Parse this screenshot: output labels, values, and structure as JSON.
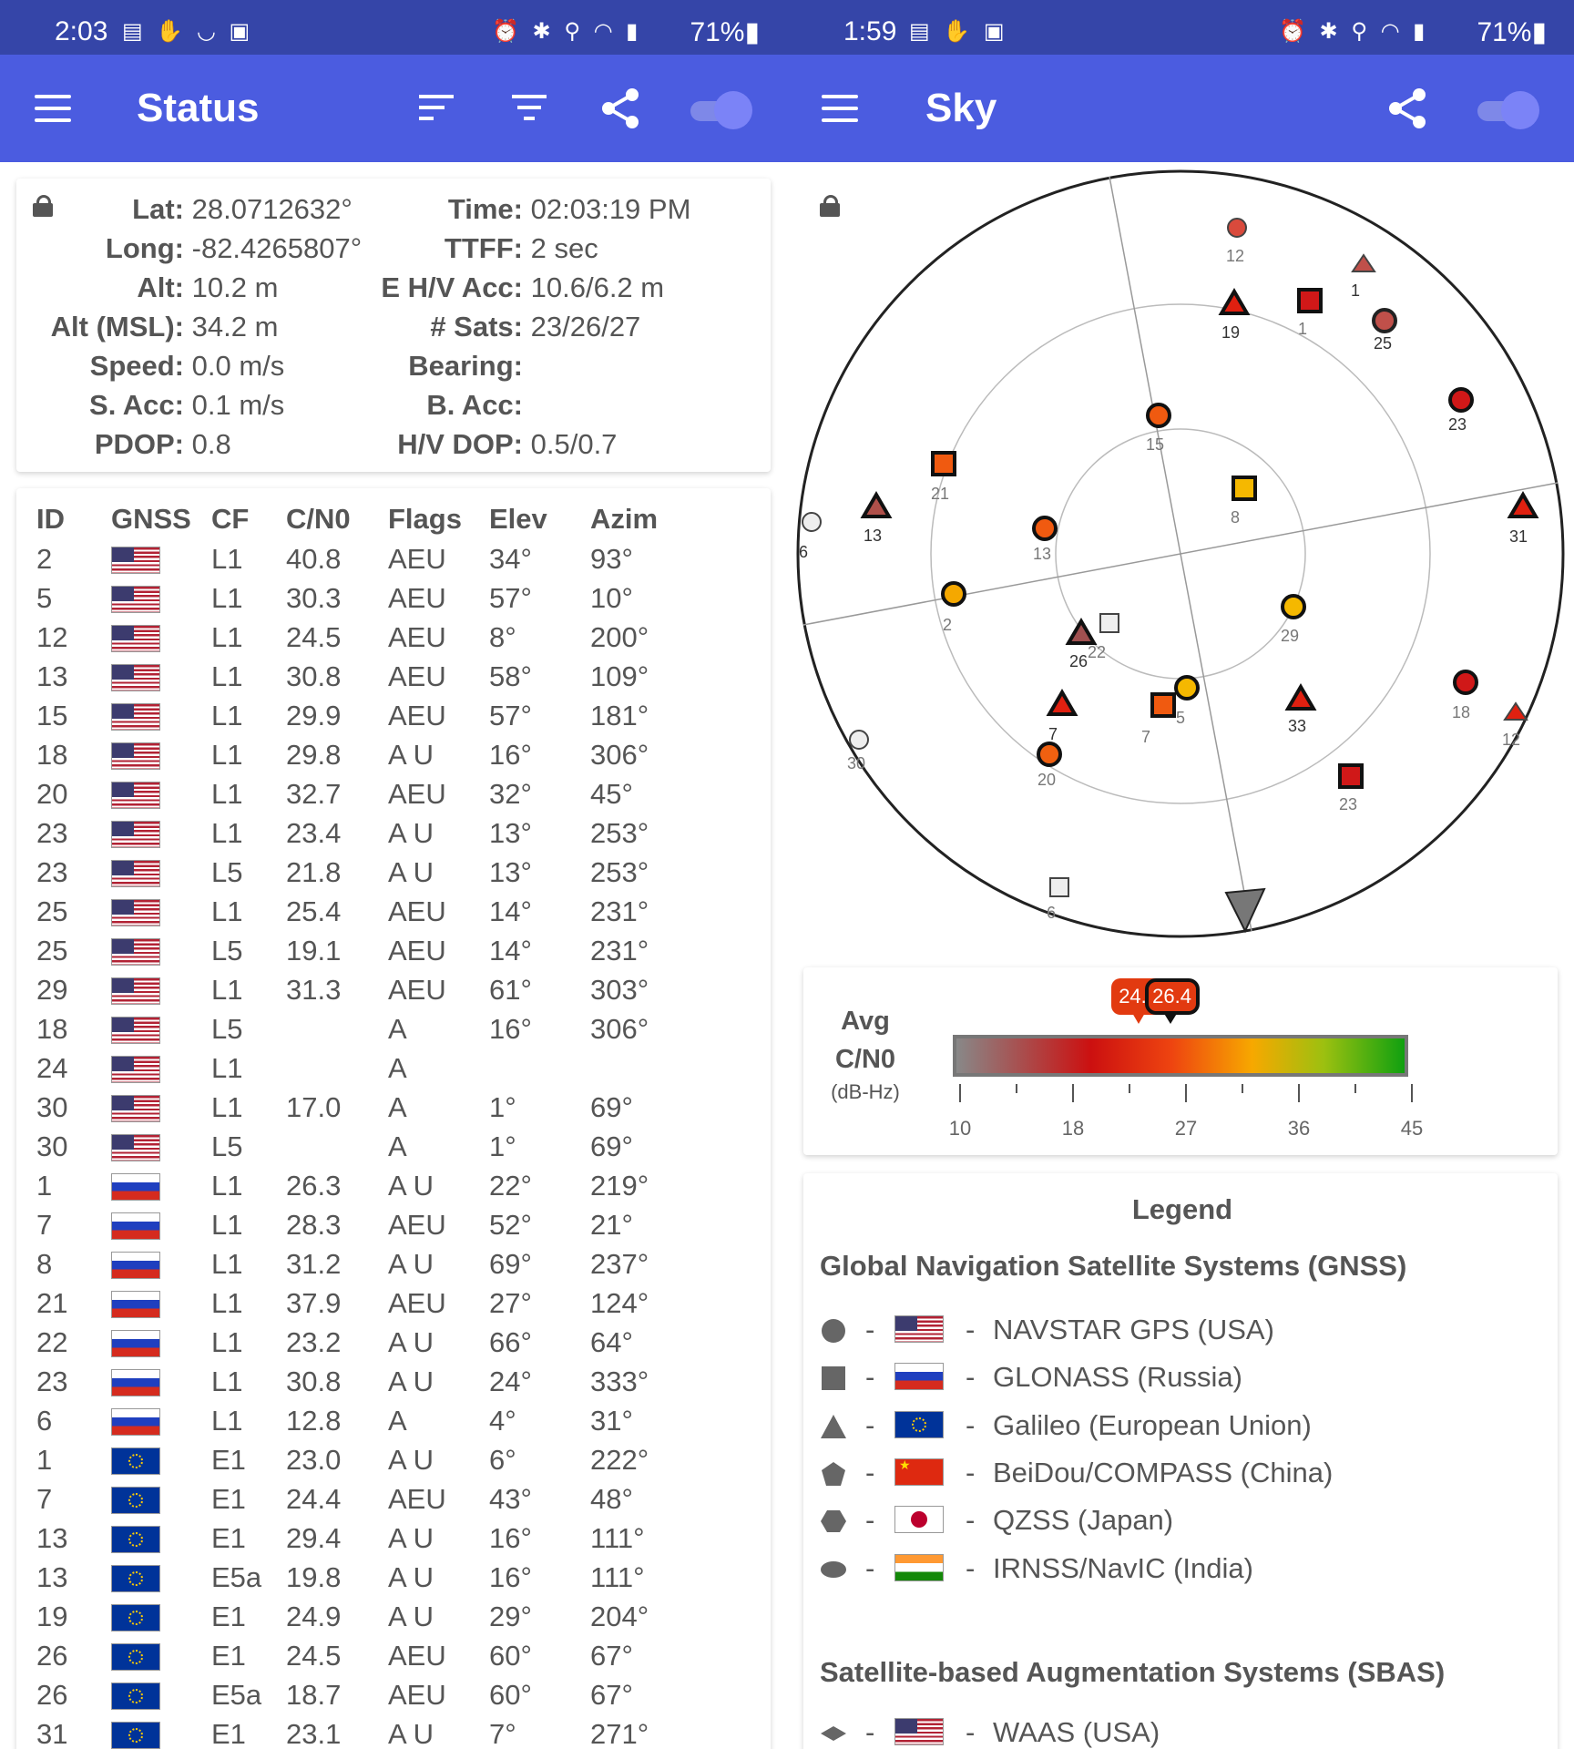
{
  "status_screen": {
    "statusbar": {
      "time": "2:03",
      "battery": "71%"
    },
    "toolbar": {
      "title": "Status"
    },
    "fix": {
      "lat_label": "Lat:",
      "lat": "28.0712632°",
      "long_label": "Long:",
      "long": "-82.4265807°",
      "alt_label": "Alt:",
      "alt": "10.2 m",
      "alt_msl_label": "Alt (MSL):",
      "alt_msl": "34.2 m",
      "speed_label": "Speed:",
      "speed": "0.0 m/s",
      "s_acc_label": "S. Acc:",
      "s_acc": "0.1 m/s",
      "pdop_label": "PDOP:",
      "pdop": "0.8",
      "time_label": "Time:",
      "time": "02:03:19 PM",
      "ttff_label": "TTFF:",
      "ttff": "2 sec",
      "ehv_acc_label": "E H/V Acc:",
      "ehv_acc": "10.6/6.2 m",
      "sats_label": "# Sats:",
      "sats": "23/26/27",
      "bearing_label": "Bearing:",
      "bearing": "",
      "b_acc_label": "B. Acc:",
      "b_acc": "",
      "hv_dop_label": "H/V DOP:",
      "hv_dop": "0.5/0.7"
    },
    "table": {
      "headers": [
        "ID",
        "GNSS",
        "CF",
        "C/N0",
        "Flags",
        "Elev",
        "Azim"
      ],
      "rows": [
        {
          "id": "2",
          "gnss": "us",
          "cf": "L1",
          "cn0": "40.8",
          "flags": "AEU",
          "elev": "34°",
          "azim": "93°"
        },
        {
          "id": "5",
          "gnss": "us",
          "cf": "L1",
          "cn0": "30.3",
          "flags": "AEU",
          "elev": "57°",
          "azim": "10°"
        },
        {
          "id": "12",
          "gnss": "us",
          "cf": "L1",
          "cn0": "24.5",
          "flags": "AEU",
          "elev": "8°",
          "azim": "200°"
        },
        {
          "id": "13",
          "gnss": "us",
          "cf": "L1",
          "cn0": "30.8",
          "flags": "AEU",
          "elev": "58°",
          "azim": "109°"
        },
        {
          "id": "15",
          "gnss": "us",
          "cf": "L1",
          "cn0": "29.9",
          "flags": "AEU",
          "elev": "57°",
          "azim": "181°"
        },
        {
          "id": "18",
          "gnss": "us",
          "cf": "L1",
          "cn0": "29.8",
          "flags": "A U",
          "elev": "16°",
          "azim": "306°"
        },
        {
          "id": "20",
          "gnss": "us",
          "cf": "L1",
          "cn0": "32.7",
          "flags": "AEU",
          "elev": "32°",
          "azim": "45°"
        },
        {
          "id": "23",
          "gnss": "us",
          "cf": "L1",
          "cn0": "23.4",
          "flags": "A U",
          "elev": "13°",
          "azim": "253°"
        },
        {
          "id": "23",
          "gnss": "us",
          "cf": "L5",
          "cn0": "21.8",
          "flags": "A U",
          "elev": "13°",
          "azim": "253°"
        },
        {
          "id": "25",
          "gnss": "us",
          "cf": "L1",
          "cn0": "25.4",
          "flags": "AEU",
          "elev": "14°",
          "azim": "231°"
        },
        {
          "id": "25",
          "gnss": "us",
          "cf": "L5",
          "cn0": "19.1",
          "flags": "AEU",
          "elev": "14°",
          "azim": "231°"
        },
        {
          "id": "29",
          "gnss": "us",
          "cf": "L1",
          "cn0": "31.3",
          "flags": "AEU",
          "elev": "61°",
          "azim": "303°"
        },
        {
          "id": "18",
          "gnss": "us",
          "cf": "L5",
          "cn0": "",
          "flags": "A",
          "elev": "16°",
          "azim": "306°"
        },
        {
          "id": "24",
          "gnss": "us",
          "cf": "L1",
          "cn0": "",
          "flags": "A",
          "elev": "",
          "azim": ""
        },
        {
          "id": "30",
          "gnss": "us",
          "cf": "L1",
          "cn0": "17.0",
          "flags": "A",
          "elev": "1°",
          "azim": "69°"
        },
        {
          "id": "30",
          "gnss": "us",
          "cf": "L5",
          "cn0": "",
          "flags": "A",
          "elev": "1°",
          "azim": "69°"
        },
        {
          "id": "1",
          "gnss": "ru",
          "cf": "L1",
          "cn0": "26.3",
          "flags": "A U",
          "elev": "22°",
          "azim": "219°"
        },
        {
          "id": "7",
          "gnss": "ru",
          "cf": "L1",
          "cn0": "28.3",
          "flags": "AEU",
          "elev": "52°",
          "azim": "21°"
        },
        {
          "id": "8",
          "gnss": "ru",
          "cf": "L1",
          "cn0": "31.2",
          "flags": "A U",
          "elev": "69°",
          "azim": "237°"
        },
        {
          "id": "21",
          "gnss": "ru",
          "cf": "L1",
          "cn0": "37.9",
          "flags": "AEU",
          "elev": "27°",
          "azim": "124°"
        },
        {
          "id": "22",
          "gnss": "ru",
          "cf": "L1",
          "cn0": "23.2",
          "flags": "A U",
          "elev": "66°",
          "azim": "64°"
        },
        {
          "id": "23",
          "gnss": "ru",
          "cf": "L1",
          "cn0": "30.8",
          "flags": "A U",
          "elev": "24°",
          "azim": "333°"
        },
        {
          "id": "6",
          "gnss": "ru",
          "cf": "L1",
          "cn0": "12.8",
          "flags": "A",
          "elev": "4°",
          "azim": "31°"
        },
        {
          "id": "1",
          "gnss": "eu",
          "cf": "E1",
          "cn0": "23.0",
          "flags": "A U",
          "elev": "6°",
          "azim": "222°"
        },
        {
          "id": "7",
          "gnss": "eu",
          "cf": "E1",
          "cn0": "24.4",
          "flags": "AEU",
          "elev": "43°",
          "azim": "48°"
        },
        {
          "id": "13",
          "gnss": "eu",
          "cf": "E1",
          "cn0": "29.4",
          "flags": "A U",
          "elev": "16°",
          "azim": "111°"
        },
        {
          "id": "13",
          "gnss": "eu",
          "cf": "E5a",
          "cn0": "19.8",
          "flags": "A U",
          "elev": "16°",
          "azim": "111°"
        },
        {
          "id": "19",
          "gnss": "eu",
          "cf": "E1",
          "cn0": "24.9",
          "flags": "A U",
          "elev": "29°",
          "azim": "204°"
        },
        {
          "id": "26",
          "gnss": "eu",
          "cf": "E1",
          "cn0": "24.5",
          "flags": "AEU",
          "elev": "60°",
          "azim": "67°"
        },
        {
          "id": "26",
          "gnss": "eu",
          "cf": "E5a",
          "cn0": "18.7",
          "flags": "AEU",
          "elev": "60°",
          "azim": "67°"
        },
        {
          "id": "31",
          "gnss": "eu",
          "cf": "E1",
          "cn0": "23.1",
          "flags": "A U",
          "elev": "7°",
          "azim": "271°"
        }
      ]
    }
  },
  "sky_screen": {
    "statusbar": {
      "time": "1:59",
      "battery": "71%"
    },
    "toolbar": {
      "title": "Sky"
    },
    "sky_labels": [
      "12",
      "1",
      "19",
      "1",
      "25",
      "23",
      "15",
      "21",
      "8",
      "13",
      "13",
      "31",
      "6",
      "2",
      "29",
      "26",
      "22",
      "18",
      "12",
      "7",
      "5",
      "7",
      "33",
      "30",
      "20",
      "23",
      "6"
    ],
    "avg_cn0": {
      "title_line1": "Avg",
      "title_line2": "C/N0",
      "unit": "(dB-Hz)",
      "badge_in_view": "24.2",
      "badge_in_use": "26.4",
      "value_in_view": 24.2,
      "value_in_use": 26.4,
      "scale_ticks": [
        "10",
        "18",
        "27",
        "36",
        "45"
      ],
      "scale_min": 10,
      "scale_max": 45
    },
    "legend": {
      "title": "Legend",
      "gnss_heading": "Global Navigation Satellite Systems (GNSS)",
      "dash": "-",
      "gnss": [
        {
          "shape": "circle",
          "flag": "us",
          "name": "NAVSTAR GPS (USA)"
        },
        {
          "shape": "square",
          "flag": "ru",
          "name": "GLONASS (Russia)"
        },
        {
          "shape": "triangle",
          "flag": "eu",
          "name": "Galileo (European Union)"
        },
        {
          "shape": "pentagon",
          "flag": "cn",
          "name": "BeiDou/COMPASS (China)"
        },
        {
          "shape": "hexagon",
          "flag": "jp",
          "name": "QZSS (Japan)"
        },
        {
          "shape": "oval",
          "flag": "in",
          "name": "IRNSS/NavIC (India)"
        }
      ],
      "sbas_heading": "Satellite-based Augmentation Systems (SBAS)",
      "sbas": [
        {
          "shape": "diamond",
          "flag": "us",
          "name": "WAAS (USA)"
        }
      ]
    }
  }
}
